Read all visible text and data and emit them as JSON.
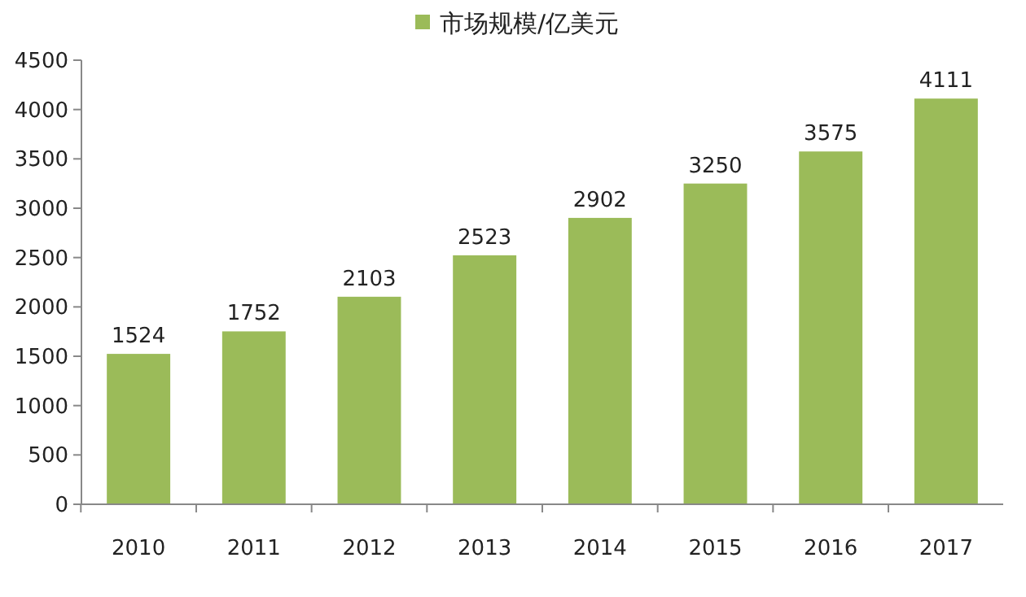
{
  "chart_data": {
    "type": "bar",
    "categories": [
      "2010",
      "2011",
      "2012",
      "2013",
      "2014",
      "2015",
      "2016",
      "2017"
    ],
    "series": [
      {
        "name": "市场规模/亿美元",
        "color": "#9bbb59",
        "values": [
          1524,
          1752,
          2103,
          2523,
          2902,
          3250,
          3575,
          4111
        ]
      }
    ],
    "ylim": [
      0,
      4500
    ],
    "yticks": [
      0,
      500,
      1000,
      1500,
      2000,
      2500,
      3000,
      3500,
      4000,
      4500
    ],
    "data_labels": true,
    "legend": "top",
    "grid": false
  }
}
